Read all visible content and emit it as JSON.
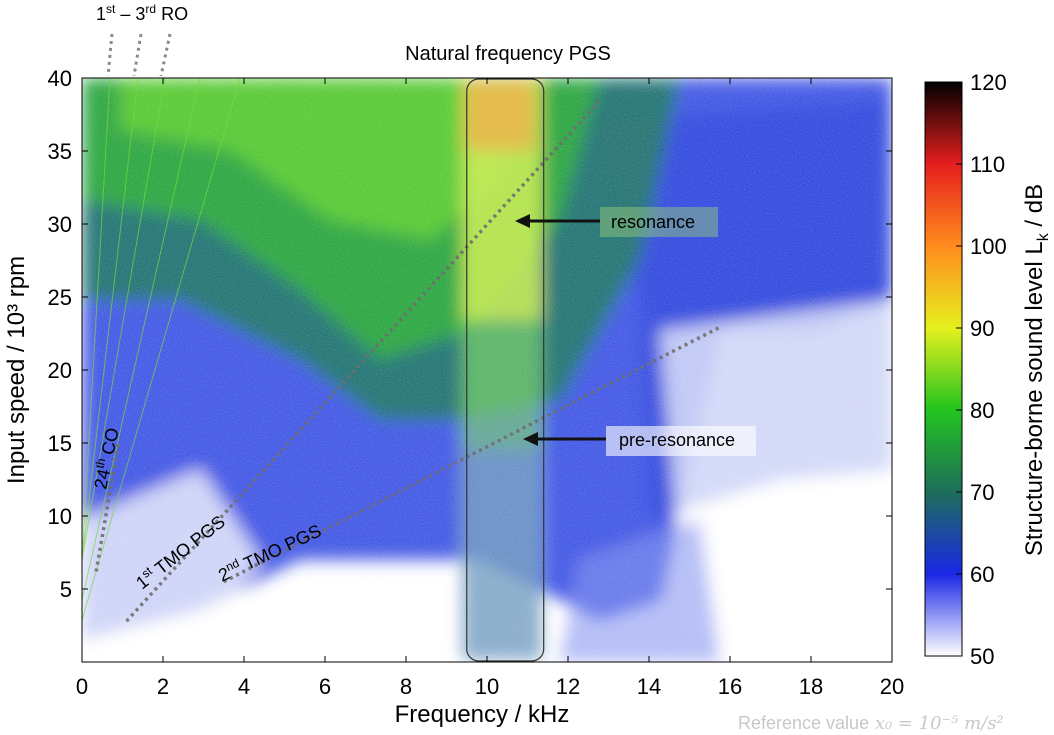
{
  "chart_data": {
    "type": "heatmap",
    "title": "Natural frequency PGS",
    "xlabel": "Frequency / kHz",
    "ylabel": "Input speed / 10³ rpm",
    "xlim": [
      0,
      20
    ],
    "ylim": [
      0,
      40
    ],
    "x_ticks": [
      "0",
      "2",
      "4",
      "6",
      "8",
      "10",
      "12",
      "14",
      "16",
      "18",
      "20"
    ],
    "y_ticks": [
      "5",
      "10",
      "15",
      "20",
      "25",
      "30",
      "35",
      "40"
    ],
    "colorbar": {
      "label": "Structure-borne sound level Lk / dB",
      "label_main": "Structure-borne sound level L",
      "label_sub": "k",
      "label_tail": " / dB",
      "range": [
        50,
        120
      ],
      "ticks": [
        "50",
        "60",
        "70",
        "80",
        "90",
        "100",
        "110",
        "120"
      ]
    },
    "colorscale": [
      [
        50,
        "#ffffff"
      ],
      [
        60,
        "#1a28e6"
      ],
      [
        70,
        "#1e6e5a"
      ],
      [
        80,
        "#22c41e"
      ],
      [
        90,
        "#e6f01e"
      ],
      [
        100,
        "#ff8c1e"
      ],
      [
        110,
        "#e61e1e"
      ],
      [
        120,
        "#000000"
      ]
    ],
    "annotations": {
      "ro_label": {
        "n1": "1",
        "s1": "st",
        "dash": " – ",
        "n2": "3",
        "s2": "rd",
        "rest": " RO"
      },
      "co_label": {
        "n": "24",
        "s": "th",
        "rest": " CO"
      },
      "tmo1_label": {
        "n": "1",
        "s": "st",
        "rest": " TMO PGS"
      },
      "tmo2_label": {
        "n": "2",
        "s": "nd",
        "rest": " TMO PGS"
      },
      "resonance": "resonance",
      "pre_resonance": "pre-resonance",
      "reference": "Reference value",
      "reference_formula": "x₀ = 10⁻⁵ m/s²"
    },
    "order_lines": [
      {
        "name": "1st TMO PGS",
        "from": [
          1.1,
          2.8
        ],
        "to": [
          12.8,
          38.5
        ]
      },
      {
        "name": "2nd TMO PGS",
        "from": [
          3.5,
          5.5
        ],
        "to": [
          15.8,
          23.0
        ]
      },
      {
        "name": "24th CO",
        "from": [
          0.35,
          6.2
        ],
        "to": [
          0.9,
          15.0
        ]
      }
    ],
    "highlight_region": {
      "x": [
        9.5,
        11.4
      ],
      "y": [
        0,
        40
      ]
    }
  }
}
